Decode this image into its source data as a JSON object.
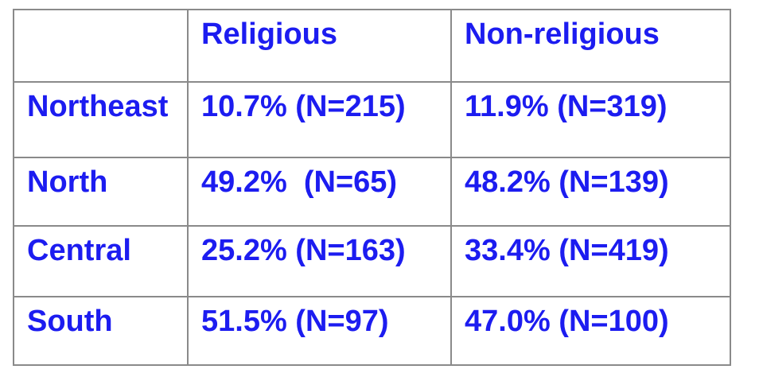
{
  "table": {
    "columns": [
      "Religious",
      "Non-religious"
    ],
    "rows": [
      {
        "label": "Northeast",
        "cells": [
          "10.7% (N=215)",
          "11.9% (N=319)"
        ]
      },
      {
        "label": "North",
        "cells": [
          "49.2%  (N=65)",
          "48.2% (N=139)"
        ]
      },
      {
        "label": "Central",
        "cells": [
          "25.2% (N=163)",
          "33.4% (N=419)"
        ]
      },
      {
        "label": "South",
        "cells": [
          "51.5% (N=97)",
          "47.0% (N=100)"
        ]
      }
    ]
  }
}
